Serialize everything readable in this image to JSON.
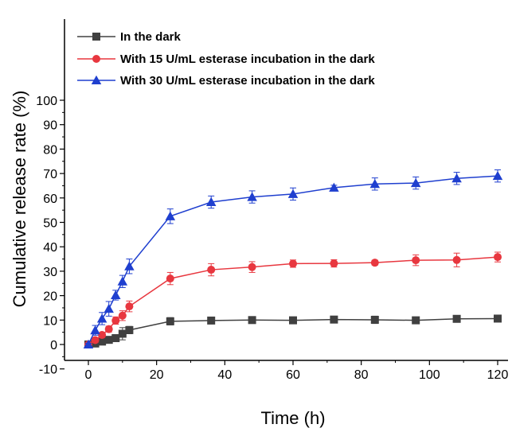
{
  "chart_data": {
    "type": "line",
    "title": "",
    "xlabel": "Time (h)",
    "ylabel": "Cumulative release rate (%)",
    "xlim": [
      -4,
      120
    ],
    "ylim": [
      -10,
      100
    ],
    "xticks": [
      "0",
      "20",
      "40",
      "60",
      "80",
      "100",
      "120"
    ],
    "yticks": [
      "-10",
      "0",
      "10",
      "20",
      "30",
      "40",
      "50",
      "60",
      "70",
      "80",
      "90",
      "100"
    ],
    "legend_position": "top-left",
    "grid": false,
    "x": [
      0,
      2,
      4,
      6,
      8,
      10,
      12,
      24,
      36,
      48,
      60,
      72,
      84,
      96,
      108,
      120
    ],
    "series": [
      {
        "name": "In the dark",
        "color": "#404040",
        "marker": "square",
        "values": [
          0,
          0.4,
          1.2,
          1.9,
          2.6,
          4.4,
          5.9,
          9.5,
          9.8,
          10.0,
          9.9,
          10.2,
          10.1,
          9.9,
          10.5,
          10.6
        ],
        "errors": [
          0.5,
          0.8,
          0.8,
          0.8,
          1.0,
          2.5,
          1.5,
          1.5,
          1.2,
          1.0,
          1.0,
          1.2,
          1.5,
          1.0,
          1.2,
          1.2
        ]
      },
      {
        "name": "With 15 U/mL esterase incubation in the dark",
        "color": "#e8373f",
        "marker": "circle",
        "values": [
          0,
          1.8,
          3.9,
          6.3,
          9.8,
          11.8,
          15.6,
          27.0,
          30.6,
          31.7,
          33.1,
          33.2,
          33.5,
          34.5,
          34.6,
          35.8
        ],
        "errors": [
          0.5,
          1.0,
          1.0,
          1.2,
          1.5,
          2.0,
          2.2,
          2.5,
          2.5,
          2.2,
          1.5,
          1.5,
          1.0,
          2.2,
          2.8,
          2.0
        ]
      },
      {
        "name": "With 30 U/mL esterase incubation in the dark",
        "color": "#1f3fcf",
        "marker": "triangle",
        "values": [
          0,
          5.8,
          10.6,
          14.6,
          20.2,
          25.8,
          32.0,
          52.5,
          58.3,
          60.4,
          61.6,
          64.2,
          65.7,
          66.1,
          68.0,
          69.0
        ],
        "errors": [
          0.5,
          2.0,
          2.5,
          3.0,
          2.0,
          2.5,
          3.0,
          3.0,
          2.5,
          2.5,
          2.5,
          1.0,
          2.5,
          2.5,
          2.5,
          2.5
        ]
      }
    ]
  }
}
